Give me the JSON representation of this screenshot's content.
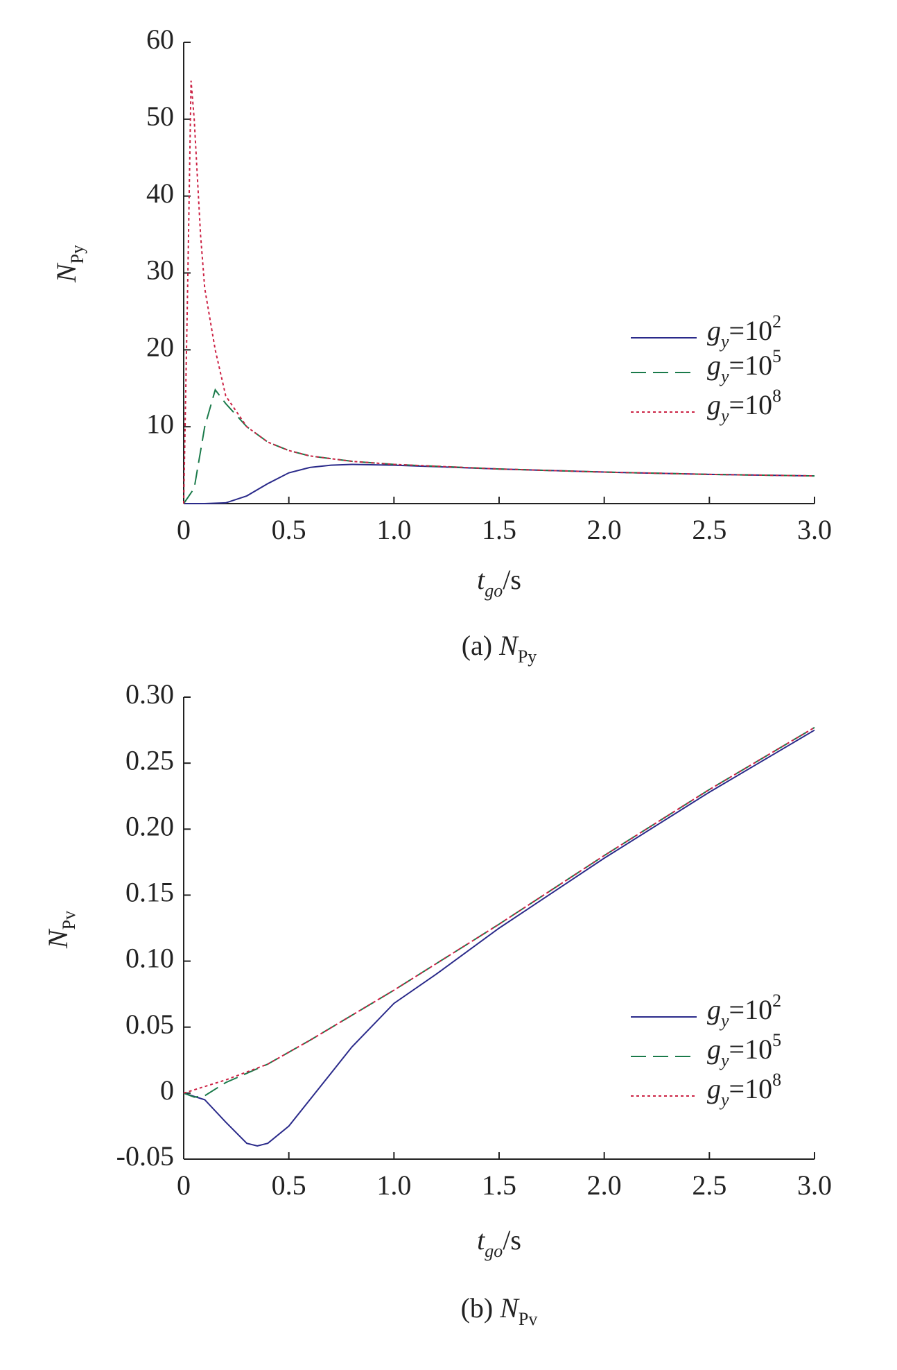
{
  "chart_data": [
    {
      "type": "line",
      "ylabel": {
        "symbol": "N",
        "sub": "Py"
      },
      "xlabel": {
        "symbol": "t",
        "sub": "go",
        "unit": "/s"
      },
      "caption": {
        "prefix": "(a)",
        "symbol": "N",
        "sub": "Py"
      },
      "xlim": [
        0,
        3
      ],
      "ylim": [
        0,
        60
      ],
      "xticks": [
        0,
        0.5,
        {
          "value": 1,
          "label": "1.0"
        },
        1.5,
        {
          "value": 2,
          "label": "2.0"
        },
        2.5,
        {
          "value": 3,
          "label": "3.0"
        }
      ],
      "yticks": [
        10,
        20,
        30,
        40,
        50,
        60
      ],
      "series": [
        {
          "name": {
            "symbol": "g",
            "sub": "y",
            "base": "=10",
            "sup": "2"
          },
          "color": "#2a2a8a",
          "dash": "solid",
          "x": [
            0,
            0.1,
            0.2,
            0.3,
            0.4,
            0.5,
            0.6,
            0.7,
            0.8,
            1.0,
            1.5,
            2.0,
            2.5,
            3.0
          ],
          "values": [
            0,
            0,
            0.1,
            1,
            2.6,
            4,
            4.7,
            5,
            5.1,
            5.0,
            4.5,
            4.1,
            3.8,
            3.6
          ]
        },
        {
          "name": {
            "symbol": "g",
            "sub": "y",
            "base": "=10",
            "sup": "5"
          },
          "color": "#1a7a4a",
          "dash": "dashed",
          "x": [
            0,
            0.05,
            0.1,
            0.15,
            0.2,
            0.3,
            0.4,
            0.5,
            0.6,
            0.8,
            1.0,
            1.5,
            2.0,
            2.5,
            3.0
          ],
          "values": [
            0,
            2,
            10,
            14.8,
            13,
            10,
            8,
            6.9,
            6.2,
            5.5,
            5.1,
            4.5,
            4.1,
            3.8,
            3.6
          ]
        },
        {
          "name": {
            "symbol": "g",
            "sub": "y",
            "base": "=10",
            "sup": "8"
          },
          "color": "#cc2244",
          "dash": "dotted",
          "x": [
            0,
            0.02,
            0.035,
            0.05,
            0.08,
            0.1,
            0.15,
            0.2,
            0.3,
            0.4,
            0.5,
            0.6,
            0.8,
            1.0,
            1.5,
            2.0,
            2.5,
            3.0
          ],
          "values": [
            0,
            30,
            55,
            50,
            35,
            28,
            20,
            14,
            10,
            8,
            6.9,
            6.2,
            5.5,
            5.1,
            4.5,
            4.1,
            3.8,
            3.6
          ]
        }
      ]
    },
    {
      "type": "line",
      "ylabel": {
        "symbol": "N",
        "sub": "Pv"
      },
      "xlabel": {
        "symbol": "t",
        "sub": "go",
        "unit": "/s"
      },
      "caption": {
        "prefix": "(b)",
        "symbol": "N",
        "sub": "Pv"
      },
      "xlim": [
        0,
        3
      ],
      "ylim": [
        -0.05,
        0.3
      ],
      "xticks": [
        0,
        0.5,
        {
          "value": 1,
          "label": "1.0"
        },
        1.5,
        {
          "value": 2,
          "label": "2.0"
        },
        2.5,
        {
          "value": 3,
          "label": "3.0"
        }
      ],
      "yticks": [
        -0.05,
        0,
        0.05,
        {
          "value": 0.1,
          "label": "0.10"
        },
        0.15,
        {
          "value": 0.2,
          "label": "0.20"
        },
        0.25,
        {
          "value": 0.3,
          "label": "0.30"
        }
      ],
      "series": [
        {
          "name": {
            "symbol": "g",
            "sub": "y",
            "base": "=10",
            "sup": "2"
          },
          "color": "#2a2a8a",
          "dash": "solid",
          "x": [
            0,
            0.1,
            0.2,
            0.3,
            0.35,
            0.4,
            0.5,
            0.6,
            0.7,
            0.8,
            1.0,
            1.2,
            1.5,
            2.0,
            2.5,
            3.0
          ],
          "values": [
            0,
            -0.005,
            -0.022,
            -0.038,
            -0.04,
            -0.038,
            -0.025,
            -0.005,
            0.015,
            0.035,
            0.068,
            0.09,
            0.125,
            0.178,
            0.228,
            0.275
          ]
        },
        {
          "name": {
            "symbol": "g",
            "sub": "y",
            "base": "=10",
            "sup": "5"
          },
          "color": "#1a7a4a",
          "dash": "dashed",
          "x": [
            0,
            0.05,
            0.1,
            0.2,
            0.4,
            0.6,
            1.0,
            1.5,
            2.0,
            2.5,
            3.0
          ],
          "values": [
            0,
            -0.003,
            -0.002,
            0.008,
            0.022,
            0.04,
            0.078,
            0.128,
            0.18,
            0.23,
            0.277
          ]
        },
        {
          "name": {
            "symbol": "g",
            "sub": "y",
            "base": "=10",
            "sup": "8"
          },
          "color": "#cc2244",
          "dash": "dotted",
          "x": [
            0,
            0.2,
            0.4,
            0.6,
            1.0,
            1.5,
            2.0,
            2.5,
            3.0
          ],
          "values": [
            0,
            0.01,
            0.022,
            0.04,
            0.078,
            0.128,
            0.18,
            0.23,
            0.277
          ]
        }
      ]
    }
  ]
}
